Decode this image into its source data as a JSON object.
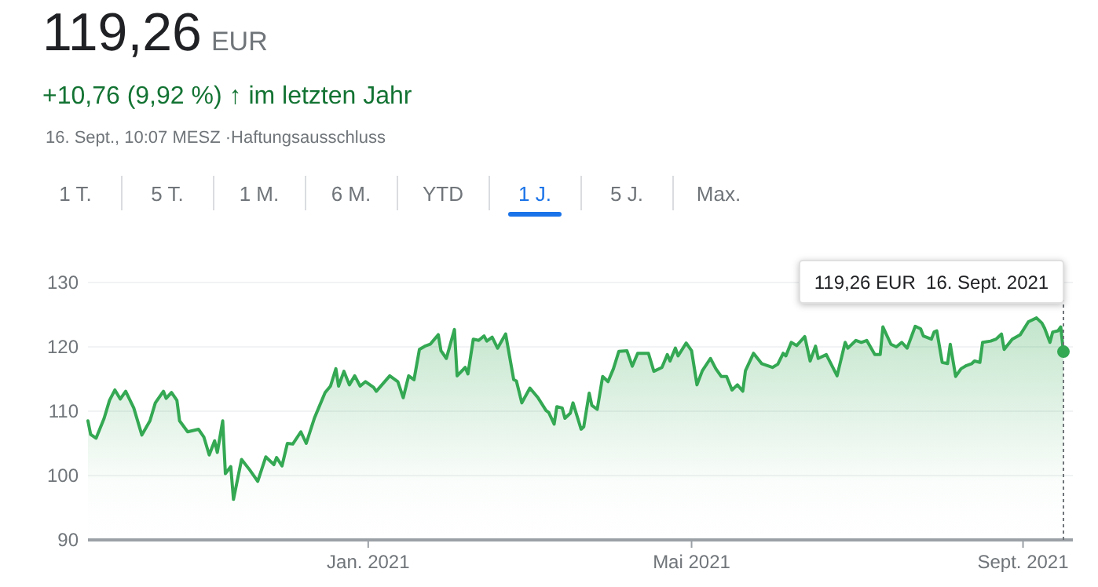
{
  "chart_data": {
    "type": "area",
    "title": "119,26 EUR",
    "subtitle": "+10,76 (9,92 %) ↑ im letzten Jahr",
    "annotations": [
      "16. Sept., 10:07 MESZ ·Haftungsausschluss",
      "1 T.",
      "5 T.",
      "1 M.",
      "6 M.",
      "YTD",
      "1 J.",
      "5 J.",
      "Max.",
      "119,26 EUR  16. Sept. 2021"
    ],
    "x": [
      "2020-09-19",
      "2020-09-20",
      "2020-09-22",
      "2020-09-25",
      "2020-09-27",
      "2020-09-29",
      "2020-10-01",
      "2020-10-03",
      "2020-10-06",
      "2020-10-09",
      "2020-10-12",
      "2020-10-14",
      "2020-10-17",
      "2020-10-18",
      "2020-10-20",
      "2020-10-22",
      "2020-10-23",
      "2020-10-26",
      "2020-10-30",
      "2020-11-01",
      "2020-11-03",
      "2020-11-05",
      "2020-11-06",
      "2020-11-08",
      "2020-11-09",
      "2020-11-11",
      "2020-11-12",
      "2020-11-15",
      "2020-11-18",
      "2020-11-21",
      "2020-11-24",
      "2020-11-27",
      "2020-11-28",
      "2020-11-30",
      "2020-12-02",
      "2020-12-04",
      "2020-12-07",
      "2020-12-09",
      "2020-12-12",
      "2020-12-14",
      "2020-12-16",
      "2020-12-18",
      "2020-12-20",
      "2020-12-21",
      "2020-12-23",
      "2020-12-25",
      "2020-12-27",
      "2020-12-29",
      "2020-12-31",
      "2021-01-03",
      "2021-01-04",
      "2021-01-09",
      "2021-01-12",
      "2021-01-14",
      "2021-01-16",
      "2021-01-18",
      "2021-01-20",
      "2021-01-22",
      "2021-01-24",
      "2021-01-25",
      "2021-01-27",
      "2021-01-28",
      "2021-01-30",
      "2021-02-02",
      "2021-02-03",
      "2021-02-06",
      "2021-02-07",
      "2021-02-09",
      "2021-02-11",
      "2021-02-13",
      "2021-02-14",
      "2021-02-16",
      "2021-02-18",
      "2021-02-21",
      "2021-02-24",
      "2021-02-25",
      "2021-02-27",
      "2021-03-02",
      "2021-03-05",
      "2021-03-08",
      "2021-03-09",
      "2021-03-11",
      "2021-03-12",
      "2021-03-14",
      "2021-03-15",
      "2021-03-17",
      "2021-03-18",
      "2021-03-21",
      "2021-03-22",
      "2021-03-24",
      "2021-03-25",
      "2021-03-27",
      "2021-03-29",
      "2021-03-31",
      "2021-04-02",
      "2021-04-04",
      "2021-04-07",
      "2021-04-09",
      "2021-04-11",
      "2021-04-15",
      "2021-04-17",
      "2021-04-20",
      "2021-04-22",
      "2021-04-23",
      "2021-04-25",
      "2021-04-26",
      "2021-04-29",
      "2021-05-01",
      "2021-05-03",
      "2021-05-05",
      "2021-05-08",
      "2021-05-10",
      "2021-05-12",
      "2021-05-14",
      "2021-05-16",
      "2021-05-18",
      "2021-05-20",
      "2021-05-21",
      "2021-05-24",
      "2021-05-27",
      "2021-05-31",
      "2021-06-02",
      "2021-06-04",
      "2021-06-05",
      "2021-06-07",
      "2021-06-09",
      "2021-06-12",
      "2021-06-14",
      "2021-06-16",
      "2021-06-17",
      "2021-06-20",
      "2021-06-24",
      "2021-06-27",
      "2021-06-28",
      "2021-07-01",
      "2021-07-03",
      "2021-07-05",
      "2021-07-08",
      "2021-07-10",
      "2021-07-11",
      "2021-07-14",
      "2021-07-16",
      "2021-07-18",
      "2021-07-20",
      "2021-07-23",
      "2021-07-25",
      "2021-07-26",
      "2021-07-29",
      "2021-07-30",
      "2021-07-31",
      "2021-08-02",
      "2021-08-04",
      "2021-08-05",
      "2021-08-07",
      "2021-08-09",
      "2021-08-11",
      "2021-08-13",
      "2021-08-14",
      "2021-08-16",
      "2021-08-17",
      "2021-08-20",
      "2021-08-22",
      "2021-08-24",
      "2021-08-25",
      "2021-08-28",
      "2021-08-31",
      "2021-09-03",
      "2021-09-06",
      "2021-09-08",
      "2021-09-09",
      "2021-09-11",
      "2021-09-12",
      "2021-09-14",
      "2021-09-15",
      "2021-09-16"
    ],
    "series": [
      {
        "color": "#34a853",
        "values": [
          108.5,
          106.4,
          105.8,
          108.9,
          111.7,
          113.3,
          111.9,
          113.1,
          110.5,
          106.3,
          108.5,
          111.3,
          113.1,
          112.0,
          112.9,
          111.7,
          108.5,
          106.8,
          107.2,
          106.0,
          103.2,
          105.4,
          103.6,
          108.5,
          100.3,
          101.4,
          96.3,
          102.5,
          100.9,
          99.1,
          102.9,
          101.7,
          102.8,
          101.5,
          105.0,
          104.9,
          106.8,
          105.0,
          108.9,
          110.9,
          112.9,
          113.9,
          116.6,
          113.9,
          116.2,
          114.1,
          115.5,
          113.9,
          114.6,
          113.7,
          113.1,
          115.5,
          114.6,
          112.1,
          115.5,
          114.9,
          119.6,
          120.1,
          120.4,
          120.9,
          121.9,
          119.4,
          118.2,
          122.7,
          115.5,
          116.8,
          115.8,
          121.2,
          121.0,
          121.7,
          120.9,
          121.5,
          119.8,
          122.0,
          114.9,
          114.7,
          111.3,
          113.6,
          112.1,
          110.1,
          109.8,
          108.0,
          110.7,
          110.5,
          108.9,
          109.7,
          111.3,
          107.2,
          107.6,
          112.8,
          110.9,
          110.3,
          115.4,
          114.6,
          116.6,
          119.3,
          119.4,
          117.0,
          119.0,
          119.0,
          116.2,
          116.8,
          118.8,
          117.8,
          119.8,
          118.6,
          120.6,
          119.4,
          114.1,
          116.3,
          118.2,
          116.6,
          115.4,
          115.4,
          113.3,
          114.1,
          113.1,
          116.3,
          119.0,
          117.4,
          116.8,
          117.3,
          119.0,
          118.6,
          120.7,
          120.2,
          121.6,
          117.8,
          120.1,
          118.2,
          118.8,
          115.5,
          120.7,
          119.8,
          121.0,
          120.7,
          121.0,
          118.8,
          118.8,
          123.1,
          120.4,
          120.0,
          120.7,
          119.8,
          123.2,
          122.8,
          121.7,
          121.2,
          122.3,
          122.5,
          117.6,
          117.4,
          120.4,
          115.4,
          116.6,
          117.1,
          117.4,
          117.8,
          117.6,
          120.7,
          120.9,
          121.2,
          122.0,
          119.6,
          121.2,
          121.9,
          123.9,
          124.5,
          123.7,
          122.9,
          120.7,
          122.3,
          122.5,
          123.1,
          119.26
        ]
      }
    ],
    "xlim": [
      "2020-09-19",
      "2021-09-16"
    ],
    "xticks": [
      {
        "value": "2021-01-01",
        "label": "Jan. 2021"
      },
      {
        "value": "2021-05-01",
        "label": "Mai 2021"
      },
      {
        "value": "2021-09-01",
        "label": "Sept. 2021"
      }
    ],
    "ylim": [
      90,
      130
    ],
    "yticks": [
      90,
      100,
      110,
      120,
      130
    ],
    "grid": "y",
    "marker": "none",
    "line_style": "solid"
  }
}
